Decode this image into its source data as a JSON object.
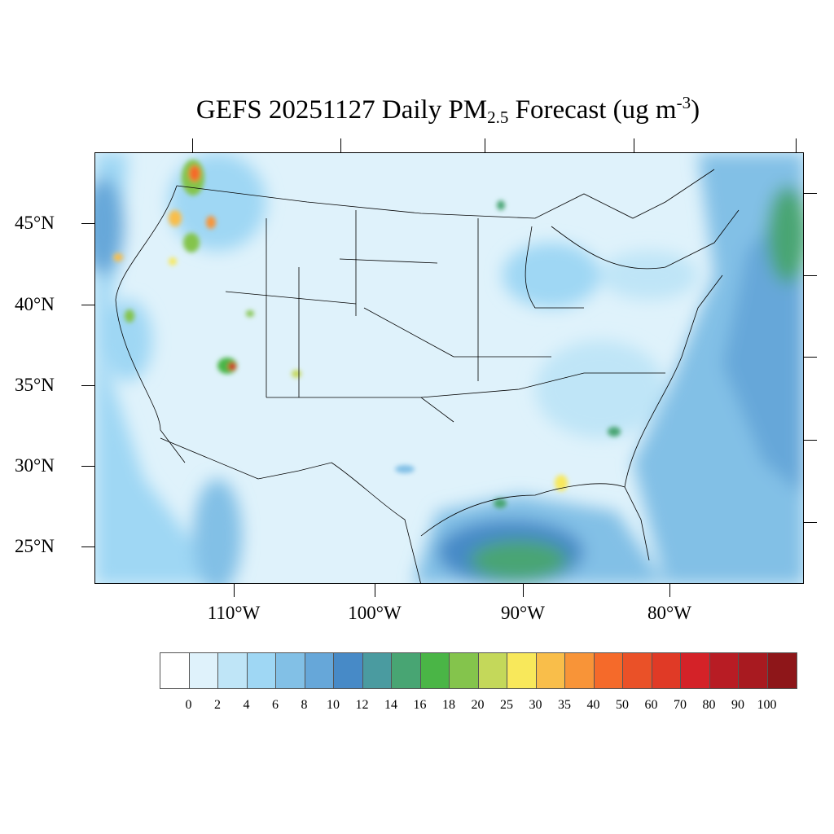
{
  "title": {
    "main": "GEFS 20251127 Daily PM",
    "sub": "2.5",
    "mid": " Forecast (ug m",
    "sup": "-3",
    "end": ")"
  },
  "lat_labels": [
    "45°N",
    "40°N",
    "35°N",
    "30°N",
    "25°N"
  ],
  "lon_labels": [
    "110°W",
    "100°W",
    "90°W",
    "80°W"
  ],
  "colorbar": {
    "levels": [
      "0",
      "2",
      "4",
      "6",
      "8",
      "10",
      "12",
      "14",
      "16",
      "18",
      "20",
      "25",
      "30",
      "35",
      "40",
      "50",
      "60",
      "70",
      "80",
      "90",
      "100"
    ],
    "colors": [
      "#ffffff",
      "#dff2fb",
      "#bfe5f7",
      "#9fd7f4",
      "#82c0e6",
      "#66a7d9",
      "#478ac7",
      "#4a9ba0",
      "#48a573",
      "#4ab546",
      "#84c44c",
      "#c4d85a",
      "#f8e85b",
      "#f9be4a",
      "#f89438",
      "#f56a2a",
      "#ea5128",
      "#e03a26",
      "#d42228",
      "#b81c24",
      "#a81a20",
      "#8e1619"
    ]
  }
}
